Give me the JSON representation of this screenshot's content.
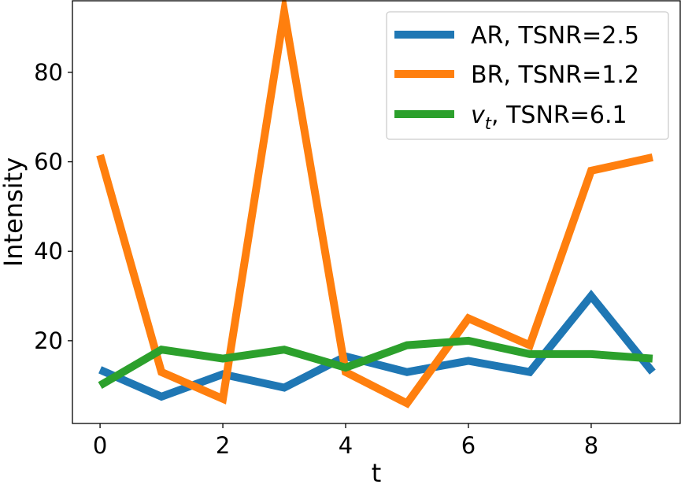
{
  "chart_data": {
    "type": "line",
    "title": "",
    "xlabel": "t",
    "ylabel": "Intensity",
    "x": [
      0,
      1,
      2,
      3,
      4,
      5,
      6,
      7,
      8,
      9
    ],
    "xlim": [
      -0.45,
      9.45
    ],
    "ylim": [
      1.5,
      96
    ],
    "xticks": [
      0,
      2,
      4,
      6,
      8
    ],
    "yticks": [
      20,
      40,
      60,
      80
    ],
    "grid": false,
    "legend_position": "top-right",
    "series": [
      {
        "name": "AR, TSNR=2.5",
        "color": "#1f77b4",
        "values": [
          13.5,
          7.5,
          12.5,
          9.5,
          16.5,
          13.0,
          15.5,
          13.0,
          30.0,
          13.0
        ]
      },
      {
        "name": "BR, TSNR=1.2",
        "color": "#ff7f0e",
        "values": [
          61.5,
          13.0,
          7.0,
          93.5,
          13.0,
          6.0,
          25.0,
          19.0,
          58.0,
          61.0
        ]
      },
      {
        "name_main": "v",
        "name_sub": "t",
        "name_rest": ", TSNR=6.1",
        "color": "#2ca02c",
        "values": [
          10.0,
          18.0,
          16.0,
          18.0,
          14.0,
          19.0,
          20.0,
          17.0,
          17.0,
          16.0
        ]
      }
    ]
  }
}
